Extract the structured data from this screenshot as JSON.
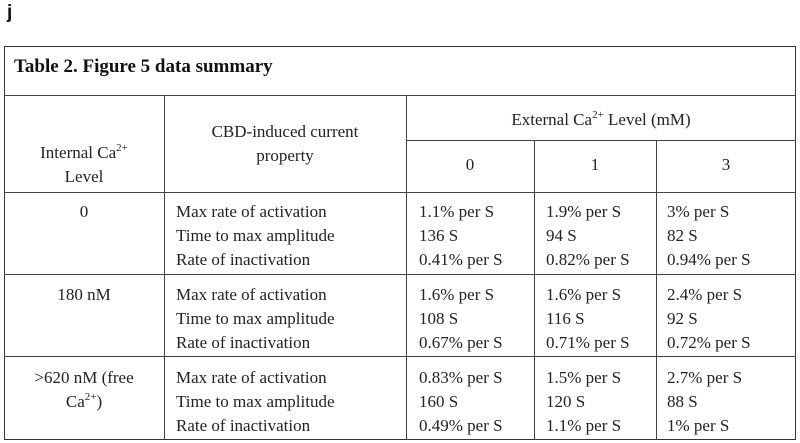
{
  "panel_label": "j",
  "caption": "Table 2. Figure 5 data summary",
  "headers": {
    "internal_line1": "Internal Ca",
    "internal_sup": "2+",
    "internal_line2": "Level",
    "property_line1": "CBD-induced current",
    "property_line2": "property",
    "external_pre": "External Ca",
    "external_sup": "2+",
    "external_post": " Level (mM)",
    "ext_cols": [
      "0",
      "1",
      "3"
    ]
  },
  "rows": [
    {
      "internal": "0",
      "properties": [
        "Max rate of activation",
        "Time to max amplitude",
        "Rate of inactivation"
      ],
      "col0": [
        "1.1% per S",
        "136 S",
        "0.41% per S"
      ],
      "col1": [
        "1.9% per S",
        "94 S",
        "0.82% per S"
      ],
      "col3": [
        "3% per S",
        "82 S",
        "0.94% per S"
      ]
    },
    {
      "internal": "180 nM",
      "properties": [
        "Max rate of activation",
        "Time to max amplitude",
        "Rate of inactivation"
      ],
      "col0": [
        "1.6% per S",
        "108 S",
        "0.67% per S"
      ],
      "col1": [
        "1.6% per S",
        "116 S",
        "0.71% per S"
      ],
      "col3": [
        "2.4% per S",
        "92 S",
        "0.72% per S"
      ]
    },
    {
      "internal_line1": ">620 nM (free",
      "internal_line2_pre": "Ca",
      "internal_line2_sup": "2+",
      "internal_line2_post": ")",
      "properties": [
        "Max rate of activation",
        "Time to max amplitude",
        "Rate of inactivation"
      ],
      "col0": [
        "0.83% per S",
        "160 S",
        "0.49% per S"
      ],
      "col1": [
        "1.5% per S",
        "120 S",
        "1.1% per S"
      ],
      "col3": [
        "2.7% per S",
        "88 S",
        "1% per S"
      ]
    }
  ]
}
